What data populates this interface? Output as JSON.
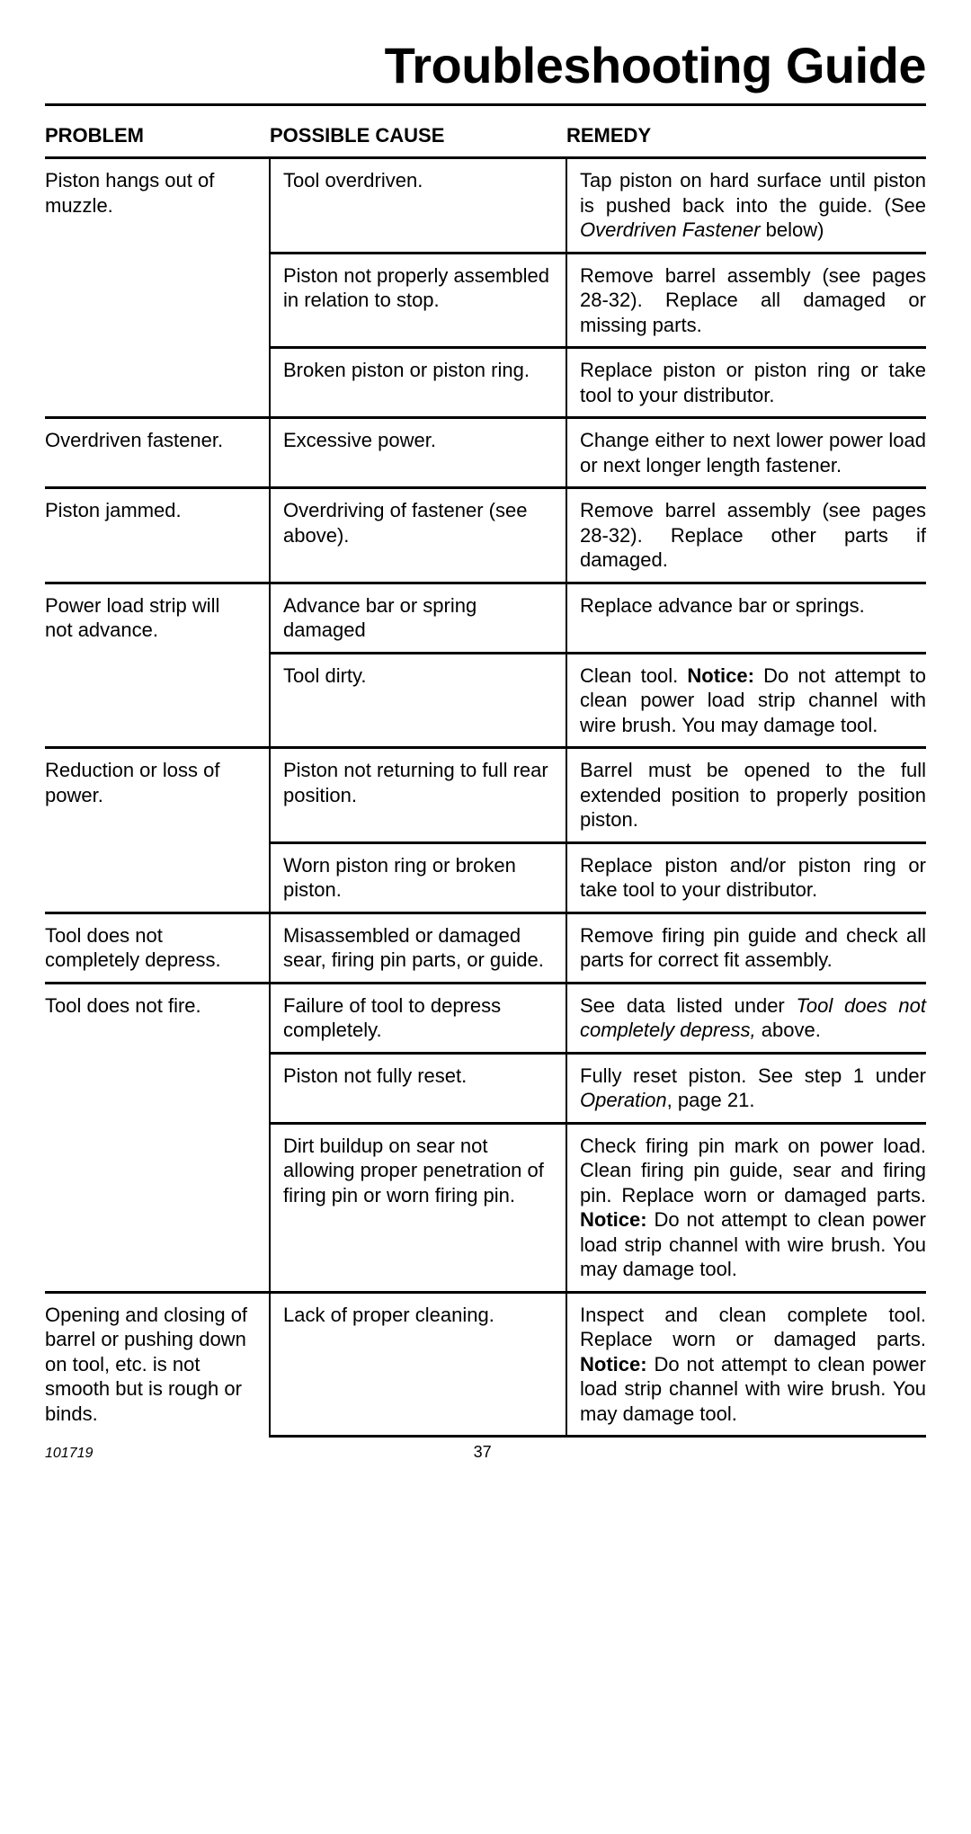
{
  "title": "Troubleshooting Guide",
  "columns": {
    "problem": "PROBLEM",
    "cause": "POSSIBLE CAUSE",
    "remedy": "REMEDY"
  },
  "footer": {
    "docid": "101719",
    "page": "37"
  },
  "rows": [
    {
      "problem": "Piston hangs out of muzzle.",
      "entries": [
        {
          "cause": "Tool overdriven.",
          "remedy_html": "Tap piston on hard surface until piston is pushed back into the guide. (See <span class='italic'>Over­driven Fastener</span> below)"
        },
        {
          "cause": "Piston not properly assembled in relation to stop.",
          "remedy_html": "Remove barrel assembly (see pages 28-32). Replace all damaged or missing parts."
        },
        {
          "cause": "Broken piston or piston ring.",
          "remedy_html": "Replace piston or piston ring or take tool to your distributor."
        }
      ]
    },
    {
      "problem": "Overdriven fastener.",
      "entries": [
        {
          "cause": "Excessive power.",
          "remedy_html": "Change either to next lower power load or next longer length fastener."
        }
      ]
    },
    {
      "problem": "Piston jammed.",
      "entries": [
        {
          "cause": "Overdriving of fastener (see above).",
          "remedy_html": "Remove barrel assembly (see pages 28-32). Replace other parts if damaged."
        }
      ]
    },
    {
      "problem": "Power load strip will not advance.",
      "entries": [
        {
          "cause": "Advance bar or spring damaged",
          "remedy_html": "Replace advance bar or springs."
        },
        {
          "cause": "Tool dirty.",
          "remedy_html": "Clean tool. <span class='bold'>Notice:</span> Do not attempt to clean power load strip channel with wire brush. You may damage tool."
        }
      ]
    },
    {
      "problem": "Reduction or loss of power.",
      "entries": [
        {
          "cause": "Piston not returning to full rear position.",
          "remedy_html": "Barrel must be opened to the full extended position to properly position piston."
        },
        {
          "cause": "Worn piston ring or broken piston.",
          "remedy_html": "Replace piston and/or piston ring or take tool to your dis­tributor."
        }
      ]
    },
    {
      "problem": "Tool does not completely depress.",
      "entries": [
        {
          "cause": "Misassembled or damaged sear, firing pin parts, or guide.",
          "remedy_html": "Remove firing pin guide and check all parts for correct fit assembly."
        }
      ]
    },
    {
      "problem": "Tool does not fire.",
      "entries": [
        {
          "cause": "Failure of tool to depress completely.",
          "remedy_html": "See data listed under <span class='italic'>Tool does not completely de­press,</span> above."
        },
        {
          "cause": "Piston not fully reset.",
          "remedy_html": "Fully reset piston. See step 1 under <span class='italic'>Operation</span>, page 21."
        },
        {
          "cause": "Dirt buildup on sear not allowing proper penetration of firing pin or worn firing pin.",
          "remedy_html": "Check firing pin mark on power load. Clean firing pin guide, sear and firing pin. Re­place worn or damaged parts. <span class='bold'>Notice:</span> Do not attempt to clean power load strip channel with wire brush. You may damage tool."
        }
      ]
    },
    {
      "problem": "Opening and clos­ing of barrel or pushing down on tool, etc. is not smooth but is rough or binds.",
      "entries": [
        {
          "cause": "Lack of proper cleaning.",
          "remedy_html": "Inspect and clean complete tool. Replace worn or dam­aged parts. <span class='bold'>Notice:</span> Do not attempt to clean power load strip channel with wire brush. You may damage tool."
        }
      ]
    }
  ]
}
